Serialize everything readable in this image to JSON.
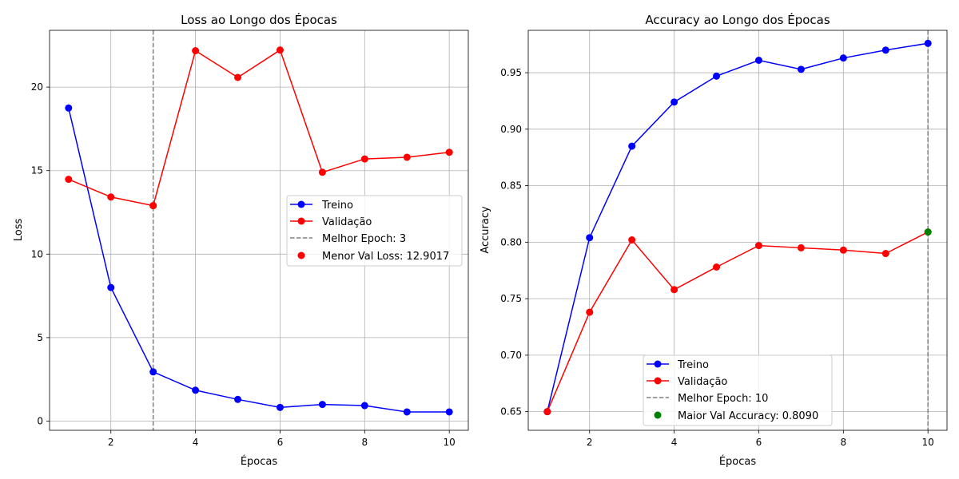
{
  "chart_data": [
    {
      "type": "line",
      "title": "Loss ao Longo dos Épocas",
      "xlabel": "Épocas",
      "ylabel": "Loss",
      "xlim": [
        0.55,
        10.45
      ],
      "ylim": [
        -0.55,
        23.4
      ],
      "xticks": [
        2,
        4,
        6,
        8,
        10
      ],
      "yticks": [
        0,
        5,
        10,
        15,
        20
      ],
      "ytick_labels": [
        "0",
        "5",
        "10",
        "15",
        "20"
      ],
      "grid": true,
      "x": [
        1,
        2,
        3,
        4,
        5,
        6,
        7,
        8,
        9,
        10
      ],
      "series": [
        {
          "name": "Treino",
          "color": "#0000ff",
          "values": [
            18.75,
            8.0,
            2.95,
            1.85,
            1.3,
            0.82,
            1.0,
            0.93,
            0.55,
            0.55
          ]
        },
        {
          "name": "Validação",
          "color": "#ff0000",
          "values": [
            14.48,
            13.42,
            12.9017,
            22.18,
            20.58,
            22.22,
            14.9,
            15.7,
            15.8,
            16.1
          ]
        }
      ],
      "best_line": {
        "label": "Melhor Epoch: 3",
        "x": 3,
        "color": "#808080"
      },
      "best_point": {
        "label": "Menor Val Loss: 12.9017",
        "x": 3,
        "y": 12.9017,
        "color": "#ff0000"
      },
      "legend_position": "center-right"
    },
    {
      "type": "line",
      "title": "Accuracy ao Longo dos Épocas",
      "xlabel": "Épocas",
      "ylabel": "Accuracy",
      "xlim": [
        0.55,
        10.45
      ],
      "ylim": [
        0.6335,
        0.9875
      ],
      "xticks": [
        2,
        4,
        6,
        8,
        10
      ],
      "yticks": [
        0.65,
        0.7,
        0.75,
        0.8,
        0.85,
        0.9,
        0.95
      ],
      "ytick_labels": [
        "0.65",
        "0.70",
        "0.75",
        "0.80",
        "0.85",
        "0.90",
        "0.95"
      ],
      "grid": true,
      "x": [
        1,
        2,
        3,
        4,
        5,
        6,
        7,
        8,
        9,
        10
      ],
      "series": [
        {
          "name": "Treino",
          "color": "#0000ff",
          "values": [
            0.65,
            0.804,
            0.885,
            0.924,
            0.947,
            0.961,
            0.953,
            0.963,
            0.97,
            0.976
          ]
        },
        {
          "name": "Validação",
          "color": "#ff0000",
          "values": [
            0.65,
            0.738,
            0.802,
            0.758,
            0.778,
            0.797,
            0.795,
            0.793,
            0.79,
            0.809
          ]
        }
      ],
      "best_line": {
        "label": "Melhor Epoch: 10",
        "x": 10,
        "color": "#808080"
      },
      "best_point": {
        "label": "Maior Val Accuracy: 0.8090",
        "x": 10,
        "y": 0.809,
        "color": "#008000"
      },
      "legend_position": "lower-center"
    }
  ]
}
